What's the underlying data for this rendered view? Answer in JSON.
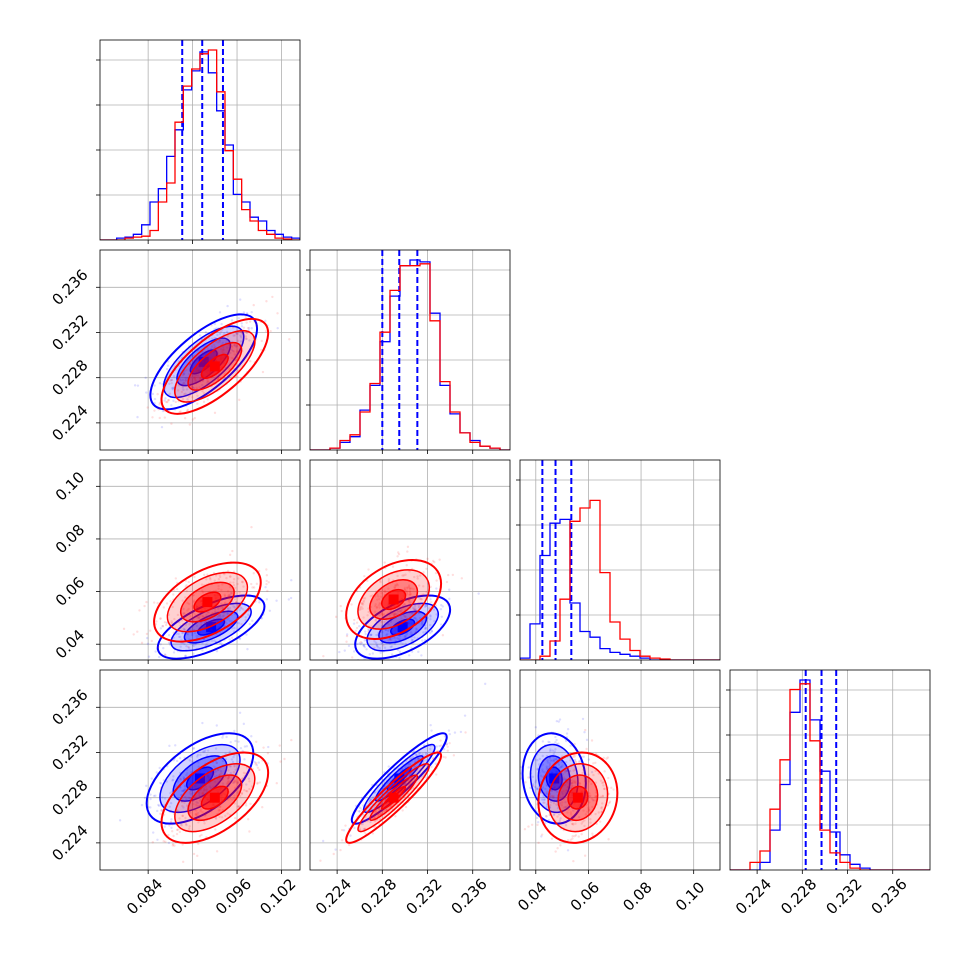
{
  "chart_data": {
    "type": "corner",
    "grid": true,
    "colors": {
      "blue": "#0000ff",
      "red": "#ff0000",
      "grid": "#b0b0b0"
    },
    "params": [
      {
        "index": 0,
        "range": [
          0.0775,
          0.1045
        ],
        "ticks": [
          "0.084",
          "0.090",
          "0.096",
          "0.102"
        ]
      },
      {
        "index": 1,
        "range": [
          0.2216,
          0.2393
        ],
        "ticks": [
          "0.224",
          "0.228",
          "0.232",
          "0.236"
        ]
      },
      {
        "index": 2,
        "range": [
          0.034,
          0.11
        ],
        "ticks": [
          "0.04",
          "0.06",
          "0.08",
          "0.10"
        ]
      },
      {
        "index": 3,
        "range": [
          0.2216,
          0.2393
        ],
        "ticks": [
          "0.224",
          "0.228",
          "0.232",
          "0.236"
        ]
      }
    ],
    "series": [
      {
        "color": "#0000ff",
        "quantiles": [
          [
            0.0886,
            0.0913,
            0.0941
          ],
          [
            0.228,
            0.2295,
            0.2311
          ],
          [
            0.0425,
            0.0475,
            0.0535
          ],
          [
            0.2283,
            0.2297,
            0.231
          ]
        ],
        "means": [
          0.0913,
          0.2295,
          0.0475,
          0.2297
        ],
        "histograms": [
          [
            0.0,
            0.0,
            0.01,
            0.015,
            0.03,
            0.08,
            0.2,
            0.27,
            0.44,
            0.58,
            0.79,
            0.89,
            0.99,
            0.88,
            0.68,
            0.5,
            0.24,
            0.2,
            0.12,
            0.1,
            0.05,
            0.03,
            0.015,
            0.01
          ],
          [
            0.0,
            0.0,
            0.01,
            0.04,
            0.07,
            0.21,
            0.34,
            0.57,
            0.81,
            0.97,
            1.0,
            0.99,
            0.72,
            0.34,
            0.19,
            0.09,
            0.05,
            0.02,
            0.01,
            0.0
          ],
          [
            0.01,
            0.19,
            0.55,
            0.72,
            0.74,
            0.3,
            0.15,
            0.12,
            0.06,
            0.04,
            0.03,
            0.02,
            0.01,
            0.0,
            0.0,
            0.0,
            0.0,
            0.0,
            0.0,
            0.0
          ],
          [
            0.0,
            0.0,
            0.0,
            0.04,
            0.21,
            0.45,
            0.83,
            1.0,
            0.79,
            0.52,
            0.2,
            0.08,
            0.03,
            0.01,
            0.0,
            0.0,
            0.0,
            0.0,
            0.0,
            0.0
          ]
        ],
        "pairs": [
          {
            "row": 1,
            "col": 0,
            "mean": [
              0.0915,
              0.2294
            ],
            "sd": [
              0.0036,
              0.0021
            ],
            "rho": 0.7
          },
          {
            "row": 2,
            "col": 0,
            "mean": [
              0.0925,
              0.0465
            ],
            "sd": [
              0.0036,
              0.006
            ],
            "rho": 0.65
          },
          {
            "row": 2,
            "col": 1,
            "mean": [
              0.2298,
              0.0465
            ],
            "sd": [
              0.0021,
              0.006
            ],
            "rho": 0.55
          },
          {
            "row": 3,
            "col": 0,
            "mean": [
              0.091,
              0.2297
            ],
            "sd": [
              0.0036,
              0.002
            ],
            "rho": 0.55
          },
          {
            "row": 3,
            "col": 1,
            "mean": [
              0.2295,
              0.2297
            ],
            "sd": [
              0.0021,
              0.002
            ],
            "rho": 0.92
          },
          {
            "row": 3,
            "col": 2,
            "mean": [
              0.047,
              0.2297
            ],
            "sd": [
              0.006,
              0.002
            ],
            "rho": -0.1
          }
        ]
      },
      {
        "color": "#ff0000",
        "quantiles": [],
        "means": [
          0.093,
          0.2294,
          0.057,
          0.228
        ],
        "histograms": [
          [
            0.0,
            0.0,
            0.0,
            0.01,
            0.015,
            0.02,
            0.05,
            0.2,
            0.3,
            0.62,
            0.81,
            0.9,
            0.98,
            1.0,
            0.78,
            0.47,
            0.32,
            0.16,
            0.1,
            0.05,
            0.03,
            0.01,
            0.005,
            0.0
          ],
          [
            0.0,
            0.0,
            0.01,
            0.05,
            0.08,
            0.2,
            0.35,
            0.62,
            0.84,
            0.97,
            0.97,
            0.98,
            0.68,
            0.36,
            0.2,
            0.09,
            0.04,
            0.02,
            0.01,
            0.0
          ],
          [
            0.0,
            0.0,
            0.02,
            0.1,
            0.32,
            0.73,
            0.8,
            0.84,
            0.46,
            0.2,
            0.11,
            0.05,
            0.02,
            0.01,
            0.005,
            0.0,
            0.0,
            0.0,
            0.0,
            0.0
          ],
          [
            0.0,
            0.0,
            0.04,
            0.1,
            0.32,
            0.58,
            0.95,
            0.98,
            0.68,
            0.21,
            0.09,
            0.04,
            0.01,
            0.0,
            0.0,
            0.0,
            0.0,
            0.0,
            0.0,
            0.0
          ]
        ],
        "pairs": [
          {
            "row": 1,
            "col": 0,
            "mean": [
              0.093,
              0.229
            ],
            "sd": [
              0.0036,
              0.0021
            ],
            "rho": 0.7
          },
          {
            "row": 2,
            "col": 0,
            "mean": [
              0.092,
              0.056
            ],
            "sd": [
              0.0036,
              0.0075
            ],
            "rho": 0.5
          },
          {
            "row": 2,
            "col": 1,
            "mean": [
              0.229,
              0.057
            ],
            "sd": [
              0.0021,
              0.0075
            ],
            "rho": 0.4
          },
          {
            "row": 3,
            "col": 0,
            "mean": [
              0.093,
              0.228
            ],
            "sd": [
              0.0036,
              0.002
            ],
            "rho": 0.55
          },
          {
            "row": 3,
            "col": 1,
            "mean": [
              0.229,
              0.228
            ],
            "sd": [
              0.0021,
              0.002
            ],
            "rho": 0.93
          },
          {
            "row": 3,
            "col": 2,
            "mean": [
              0.056,
              0.228
            ],
            "sd": [
              0.0075,
              0.002
            ],
            "rho": 0.1
          }
        ]
      }
    ]
  }
}
